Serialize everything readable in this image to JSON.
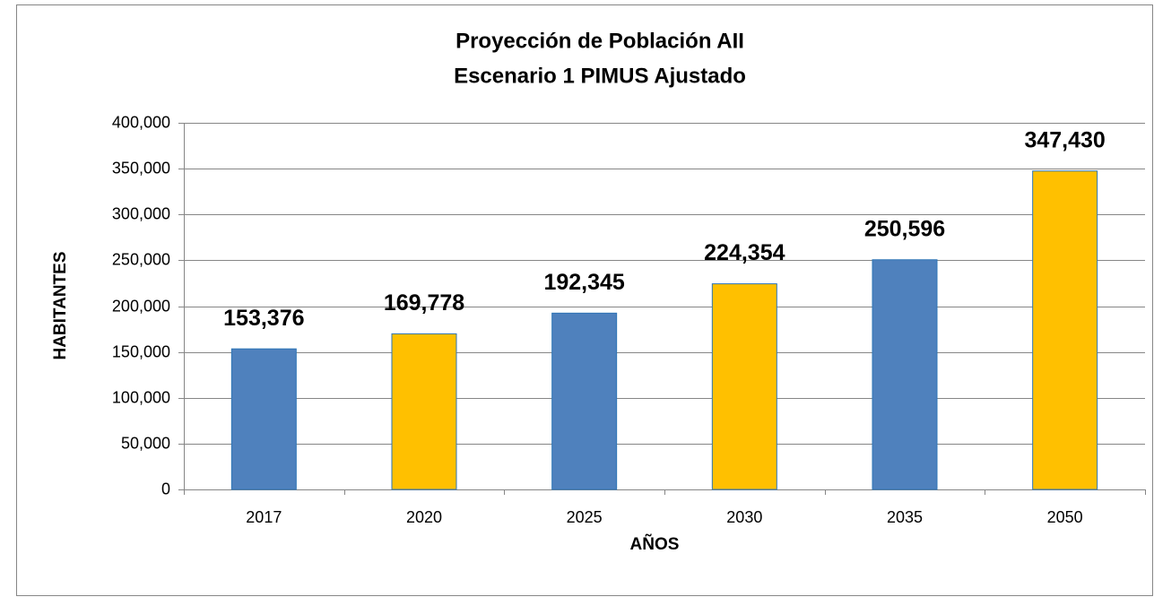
{
  "chart_data": {
    "type": "bar",
    "title": "Proyección de Población AII",
    "subtitle": "Escenario 1 PIMUS Ajustado",
    "x_label": "AÑOS",
    "y_label": "HABITANTES",
    "categories": [
      "2017",
      "2020",
      "2025",
      "2030",
      "2035",
      "2050"
    ],
    "values": [
      153376,
      169778,
      192345,
      224354,
      250596,
      347430
    ],
    "value_labels": [
      "153,376",
      "169,778",
      "192,345",
      "224,354",
      "250,596",
      "347,430"
    ],
    "colors": [
      "#4f81bd",
      "#ffc000",
      "#4f81bd",
      "#ffc000",
      "#4f81bd",
      "#ffc000"
    ],
    "ylim": [
      0,
      400000
    ],
    "yticks": [
      0,
      {
        "value": 50000,
        "label": "50,000"
      },
      {
        "value": 100000,
        "label": "100,000"
      },
      {
        "value": 150000,
        "label": "150,000"
      },
      {
        "value": 200000,
        "label": "200,000"
      },
      {
        "value": 250000,
        "label": "250,000"
      },
      {
        "value": 300000,
        "label": "300,000"
      },
      {
        "value": 350000,
        "label": "350,000"
      },
      {
        "value": 400000,
        "label": "400,000"
      }
    ],
    "grid": true
  }
}
